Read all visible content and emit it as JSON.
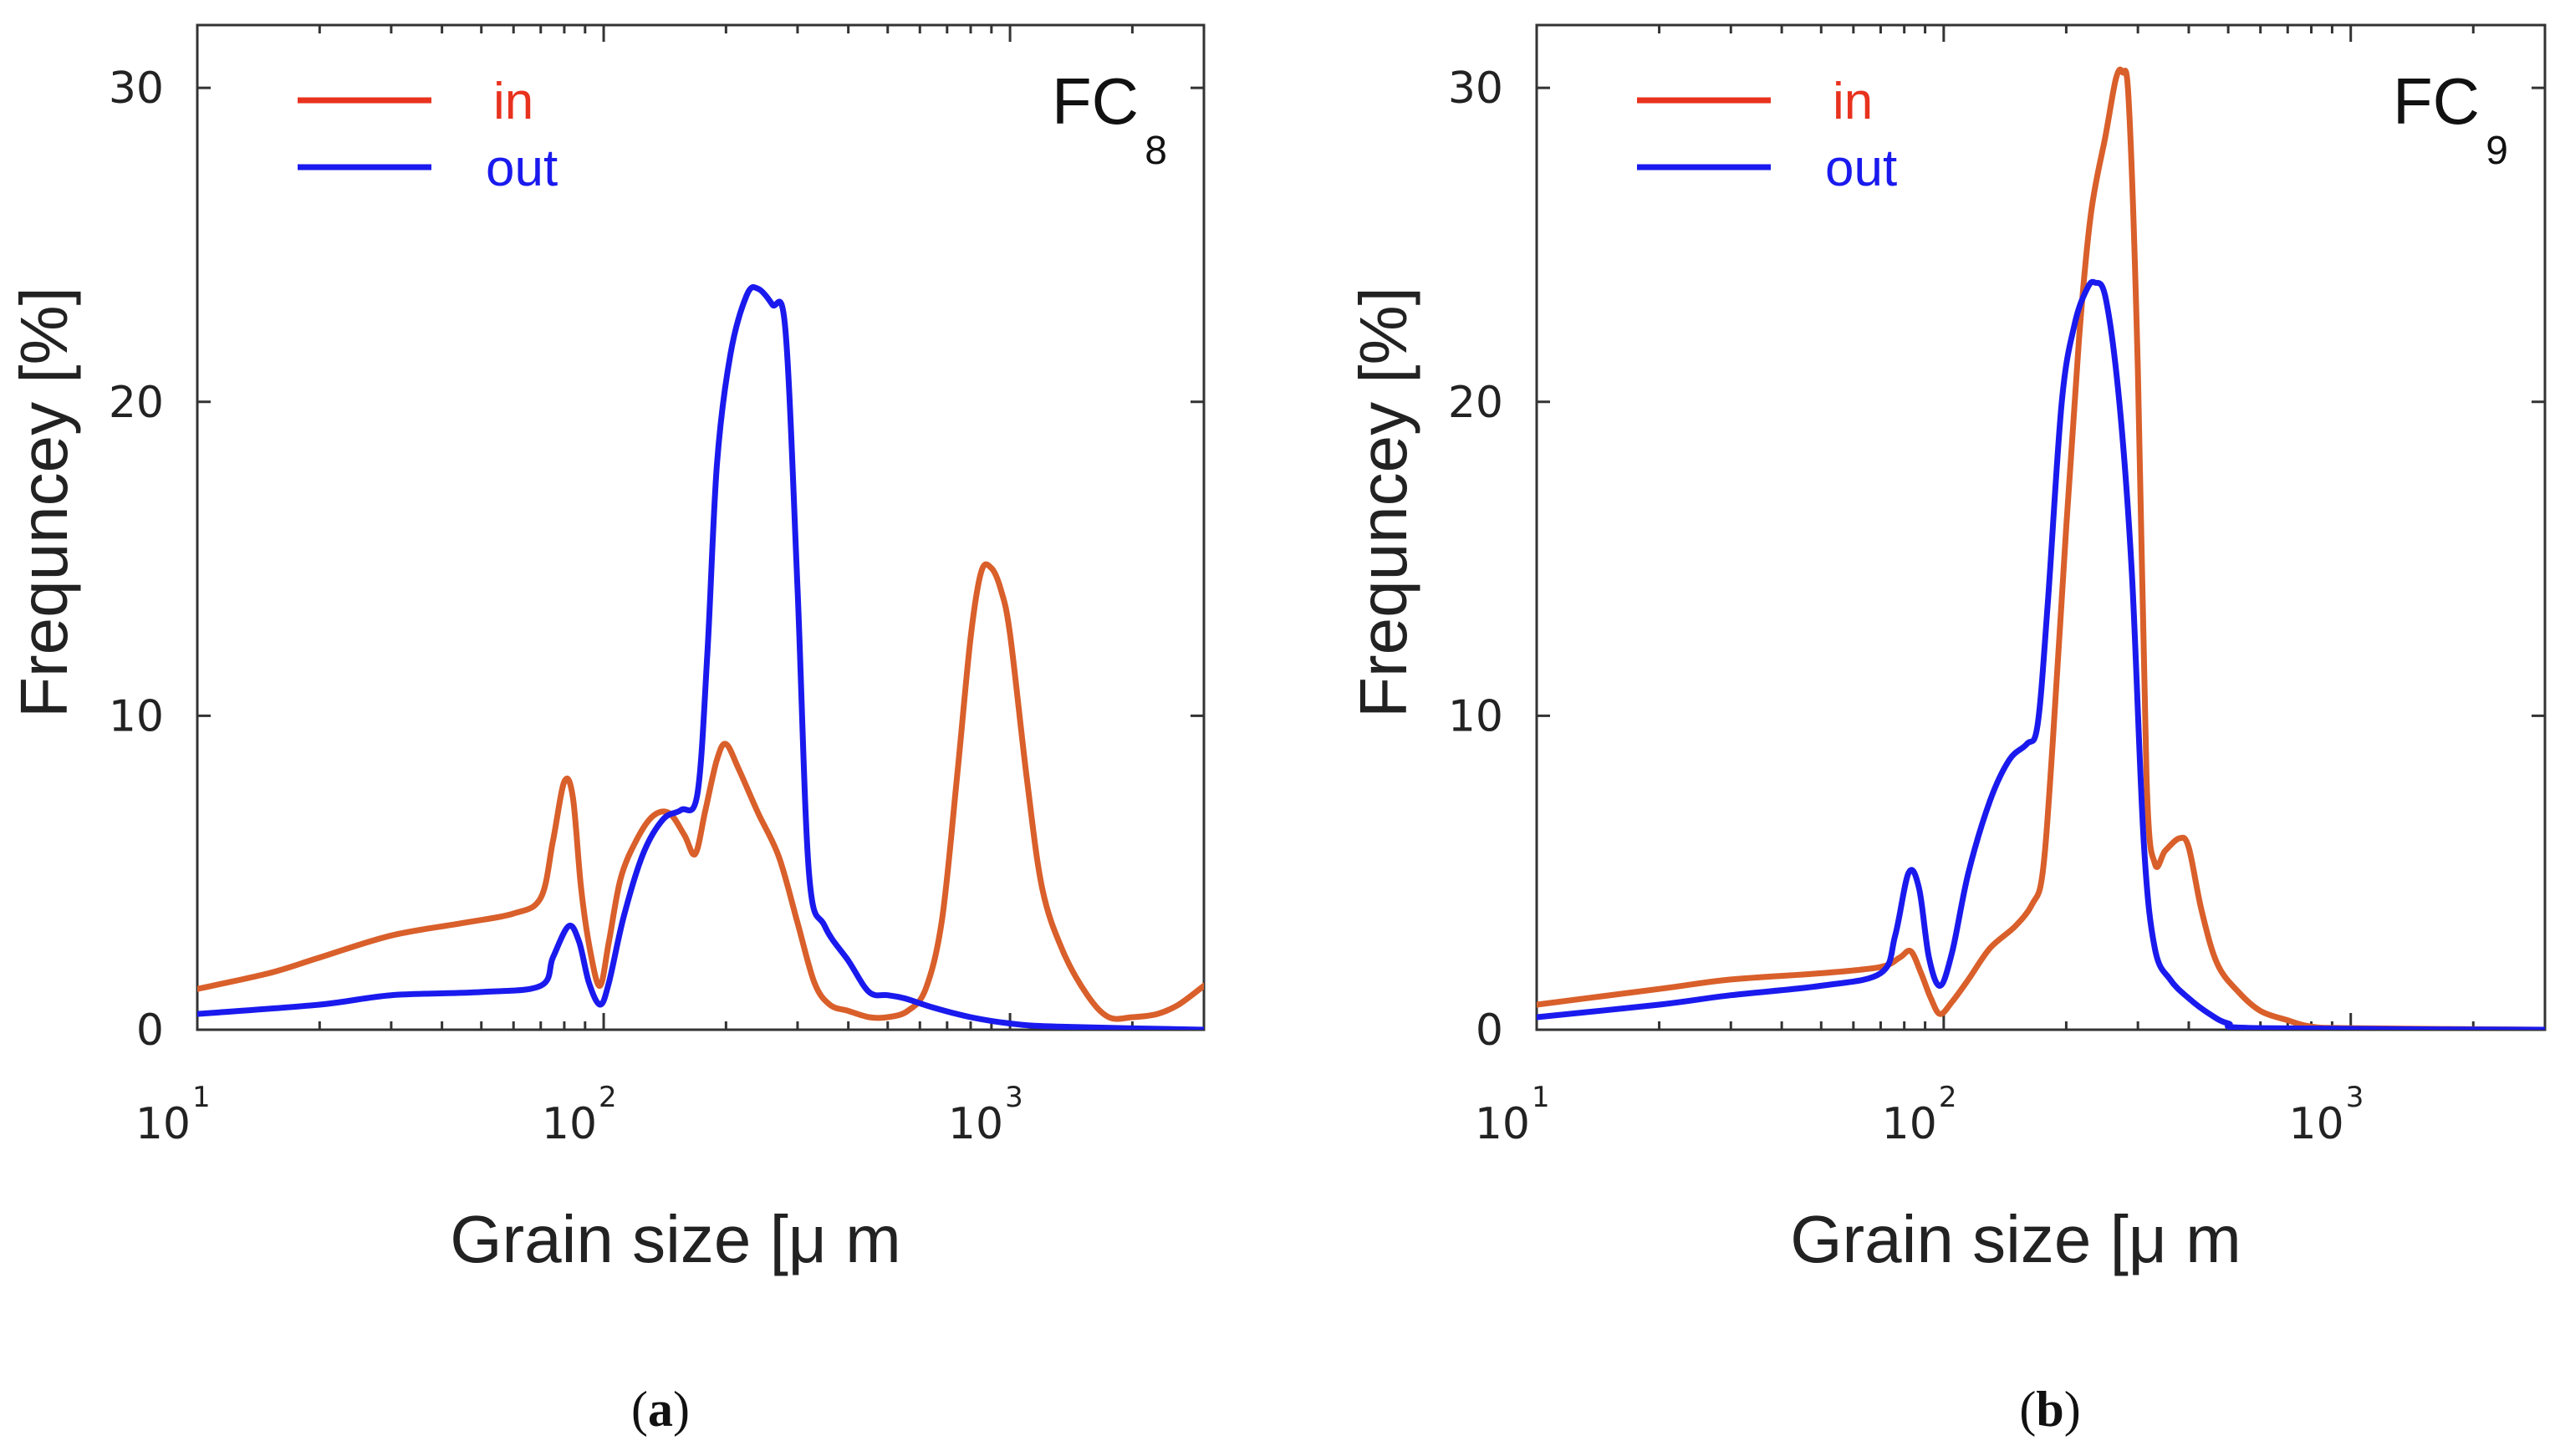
{
  "chart_data": [
    {
      "type": "line",
      "panel_label": {
        "main": "FC",
        "sub": "8"
      },
      "caption": {
        "open": "(",
        "letter": "a",
        "close": ")"
      },
      "xlabel": "Grain size [μ m",
      "ylabel": "Frequncey [%]",
      "xscale": "log",
      "xlim": [
        10,
        3000
      ],
      "ylim": [
        0,
        32
      ],
      "xticks": [
        {
          "base": "10",
          "exp": "1",
          "value": 10
        },
        {
          "base": "10",
          "exp": "2",
          "value": 100
        },
        {
          "base": "10",
          "exp": "3",
          "value": 1000
        }
      ],
      "yticks": [
        {
          "label": "0",
          "value": 0
        },
        {
          "label": "10",
          "value": 10
        },
        {
          "label": "20",
          "value": 20
        },
        {
          "label": "30",
          "value": 30
        }
      ],
      "grid": false,
      "legend_position": "top-left",
      "series": [
        {
          "name": "in",
          "color": "#d95f2b",
          "legend_color": "#e8321e",
          "points": [
            [
              10,
              1.3
            ],
            [
              15,
              1.8
            ],
            [
              20,
              2.3
            ],
            [
              30,
              3.0
            ],
            [
              45,
              3.4
            ],
            [
              60,
              3.7
            ],
            [
              70,
              4.2
            ],
            [
              75,
              6.0
            ],
            [
              80,
              7.9
            ],
            [
              84,
              7.4
            ],
            [
              88,
              4.5
            ],
            [
              93,
              2.4
            ],
            [
              98,
              1.4
            ],
            [
              103,
              2.8
            ],
            [
              110,
              4.8
            ],
            [
              120,
              6.0
            ],
            [
              132,
              6.8
            ],
            [
              145,
              6.9
            ],
            [
              158,
              6.2
            ],
            [
              168,
              5.6
            ],
            [
              178,
              7.0
            ],
            [
              190,
              8.6
            ],
            [
              200,
              9.1
            ],
            [
              215,
              8.3
            ],
            [
              240,
              6.9
            ],
            [
              270,
              5.5
            ],
            [
              300,
              3.4
            ],
            [
              330,
              1.5
            ],
            [
              360,
              0.8
            ],
            [
              400,
              0.6
            ],
            [
              450,
              0.4
            ],
            [
              500,
              0.4
            ],
            [
              560,
              0.6
            ],
            [
              620,
              1.3
            ],
            [
              680,
              3.5
            ],
            [
              740,
              8.0
            ],
            [
              800,
              12.5
            ],
            [
              850,
              14.6
            ],
            [
              900,
              14.7
            ],
            [
              950,
              14.0
            ],
            [
              1000,
              12.6
            ],
            [
              1100,
              8.0
            ],
            [
              1200,
              4.5
            ],
            [
              1350,
              2.5
            ],
            [
              1550,
              1.1
            ],
            [
              1750,
              0.4
            ],
            [
              2000,
              0.4
            ],
            [
              2300,
              0.5
            ],
            [
              2600,
              0.8
            ],
            [
              3000,
              1.4
            ]
          ]
        },
        {
          "name": "out",
          "color": "#1a1aee",
          "legend_color": "#1a1aee",
          "points": [
            [
              10,
              0.5
            ],
            [
              20,
              0.8
            ],
            [
              30,
              1.1
            ],
            [
              50,
              1.2
            ],
            [
              70,
              1.4
            ],
            [
              75,
              2.3
            ],
            [
              82,
              3.3
            ],
            [
              87,
              2.8
            ],
            [
              92,
              1.5
            ],
            [
              98,
              0.8
            ],
            [
              103,
              1.5
            ],
            [
              112,
              3.6
            ],
            [
              125,
              5.6
            ],
            [
              140,
              6.7
            ],
            [
              155,
              7.0
            ],
            [
              170,
              7.5
            ],
            [
              180,
              12.0
            ],
            [
              190,
              18.0
            ],
            [
              205,
              21.5
            ],
            [
              225,
              23.4
            ],
            [
              240,
              23.6
            ],
            [
              260,
              23.1
            ],
            [
              280,
              22.3
            ],
            [
              300,
              14.0
            ],
            [
              320,
              5.0
            ],
            [
              350,
              3.3
            ],
            [
              400,
              2.2
            ],
            [
              450,
              1.2
            ],
            [
              500,
              1.1
            ],
            [
              550,
              1.0
            ],
            [
              650,
              0.7
            ],
            [
              800,
              0.4
            ],
            [
              1000,
              0.2
            ],
            [
              1300,
              0.1
            ],
            [
              3000,
              0.0
            ]
          ]
        }
      ]
    },
    {
      "type": "line",
      "panel_label": {
        "main": "FC",
        "sub": "9"
      },
      "caption": {
        "open": "(",
        "letter": "b",
        "close": ")"
      },
      "xlabel": "Grain size [μ m",
      "ylabel": "Frequncey [%]",
      "xscale": "log",
      "xlim": [
        10,
        3000
      ],
      "ylim": [
        0,
        32
      ],
      "xticks": [
        {
          "base": "10",
          "exp": "1",
          "value": 10
        },
        {
          "base": "10",
          "exp": "2",
          "value": 100
        },
        {
          "base": "10",
          "exp": "3",
          "value": 1000
        }
      ],
      "yticks": [
        {
          "label": "0",
          "value": 0
        },
        {
          "label": "10",
          "value": 10
        },
        {
          "label": "20",
          "value": 20
        },
        {
          "label": "30",
          "value": 30
        }
      ],
      "grid": false,
      "legend_position": "top-left",
      "series": [
        {
          "name": "in",
          "color": "#d95f2b",
          "legend_color": "#e8321e",
          "points": [
            [
              10,
              0.8
            ],
            [
              20,
              1.3
            ],
            [
              30,
              1.6
            ],
            [
              50,
              1.8
            ],
            [
              70,
              2.0
            ],
            [
              78,
              2.3
            ],
            [
              83,
              2.5
            ],
            [
              88,
              1.8
            ],
            [
              93,
              1.0
            ],
            [
              98,
              0.5
            ],
            [
              105,
              0.9
            ],
            [
              115,
              1.6
            ],
            [
              130,
              2.6
            ],
            [
              150,
              3.3
            ],
            [
              165,
              4.0
            ],
            [
              175,
              5.0
            ],
            [
              185,
              9.0
            ],
            [
              200,
              16.0
            ],
            [
              215,
              22.0
            ],
            [
              230,
              26.0
            ],
            [
              250,
              28.5
            ],
            [
              265,
              30.3
            ],
            [
              275,
              30.5
            ],
            [
              285,
              29.5
            ],
            [
              300,
              21.0
            ],
            [
              315,
              8.0
            ],
            [
              330,
              5.3
            ],
            [
              350,
              5.7
            ],
            [
              380,
              6.1
            ],
            [
              400,
              5.8
            ],
            [
              430,
              3.8
            ],
            [
              470,
              2.1
            ],
            [
              530,
              1.2
            ],
            [
              600,
              0.6
            ],
            [
              700,
              0.3
            ],
            [
              800,
              0.1
            ],
            [
              1000,
              0.05
            ],
            [
              3000,
              0.0
            ]
          ]
        },
        {
          "name": "out",
          "color": "#1a1aee",
          "legend_color": "#1a1aee",
          "points": [
            [
              10,
              0.4
            ],
            [
              20,
              0.8
            ],
            [
              30,
              1.1
            ],
            [
              50,
              1.4
            ],
            [
              70,
              1.8
            ],
            [
              76,
              3.0
            ],
            [
              82,
              5.0
            ],
            [
              87,
              4.5
            ],
            [
              92,
              2.3
            ],
            [
              98,
              1.4
            ],
            [
              105,
              2.5
            ],
            [
              115,
              5.0
            ],
            [
              130,
              7.3
            ],
            [
              145,
              8.6
            ],
            [
              160,
              9.1
            ],
            [
              170,
              9.7
            ],
            [
              180,
              13.5
            ],
            [
              195,
              20.0
            ],
            [
              210,
              22.5
            ],
            [
              225,
              23.6
            ],
            [
              235,
              23.8
            ],
            [
              250,
              23.3
            ],
            [
              270,
              20.0
            ],
            [
              290,
              14.5
            ],
            [
              310,
              6.0
            ],
            [
              330,
              2.6
            ],
            [
              360,
              1.6
            ],
            [
              400,
              1.0
            ],
            [
              450,
              0.5
            ],
            [
              500,
              0.2
            ],
            [
              600,
              0.05
            ],
            [
              3000,
              0.0
            ]
          ]
        }
      ]
    }
  ]
}
